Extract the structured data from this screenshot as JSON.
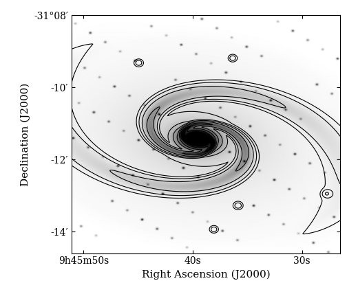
{
  "chart_data": {
    "type": "image_contour",
    "xlabel": "Right Ascension (J2000)",
    "ylabel": "Declination (J2000)",
    "xlim": [
      51.1,
      26.5
    ],
    "ylim": [
      -14.6,
      -8.0
    ],
    "xticks": [
      {
        "value": 50,
        "label": "9h45m50s"
      },
      {
        "value": 40,
        "label": "40s"
      },
      {
        "value": 30,
        "label": "30s"
      }
    ],
    "yticks": [
      {
        "value": -8,
        "label": "-31°08′"
      },
      {
        "value": -10,
        "label": "-10′"
      },
      {
        "value": -12,
        "label": "-12′"
      },
      {
        "value": -14,
        "label": "-14′"
      }
    ],
    "grid": false
  }
}
